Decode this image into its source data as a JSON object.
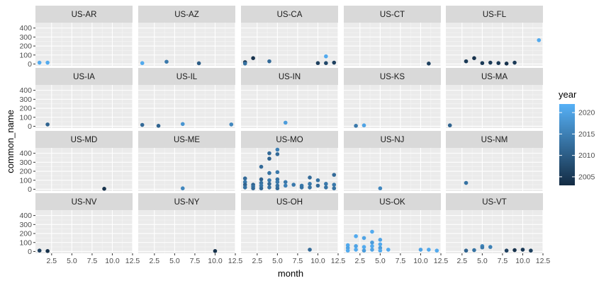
{
  "chart_data": {
    "type": "scatter",
    "xlabel": "month",
    "ylabel": "common_name",
    "xlim": [
      0.5,
      12.5
    ],
    "ylim": [
      -20,
      460
    ],
    "x_ticks": [
      "2.5",
      "5.0",
      "7.5",
      "10.0",
      "12.5"
    ],
    "x_tick_values": [
      2.5,
      5.0,
      7.5,
      10.0,
      12.5
    ],
    "y_ticks": [
      "0",
      "100",
      "200",
      "300",
      "400"
    ],
    "y_tick_values": [
      0,
      100,
      200,
      300,
      400
    ],
    "grid": true,
    "legend": {
      "title": "year",
      "position": "right",
      "ticks": [
        "2020",
        "2015",
        "2010",
        "2005"
      ],
      "tick_values": [
        2020,
        2015,
        2010,
        2005
      ],
      "range": [
        2003,
        2022
      ],
      "color_low": "#132b43",
      "color_high": "#56b1f7"
    },
    "colors": {
      "panel_bg": "#ebebeb",
      "strip_bg": "#d9d9d9",
      "grid_major": "#ffffff"
    },
    "panels": [
      {
        "label": "US-AR",
        "points": [
          {
            "x": 1,
            "y": 15,
            "year": 2021
          },
          {
            "x": 2,
            "y": 15,
            "year": 2021
          }
        ]
      },
      {
        "label": "US-AZ",
        "points": [
          {
            "x": 1,
            "y": 10,
            "year": 2021
          },
          {
            "x": 4,
            "y": 25,
            "year": 2014
          },
          {
            "x": 8,
            "y": 8,
            "year": 2010
          }
        ]
      },
      {
        "label": "US-CA",
        "points": [
          {
            "x": 1,
            "y": 20,
            "year": 2005
          },
          {
            "x": 1,
            "y": 5,
            "year": 2013
          },
          {
            "x": 2,
            "y": 65,
            "year": 2004
          },
          {
            "x": 4,
            "y": 30,
            "year": 2012
          },
          {
            "x": 10,
            "y": 10,
            "year": 2006
          },
          {
            "x": 11,
            "y": 85,
            "year": 2021
          },
          {
            "x": 11,
            "y": 10,
            "year": 2007
          },
          {
            "x": 12,
            "y": 15,
            "year": 2006
          }
        ]
      },
      {
        "label": "US-CT",
        "points": [
          {
            "x": 11,
            "y": 5,
            "year": 2006
          }
        ]
      },
      {
        "label": "US-FL",
        "points": [
          {
            "x": 3,
            "y": 30,
            "year": 2005
          },
          {
            "x": 4,
            "y": 65,
            "year": 2004
          },
          {
            "x": 5,
            "y": 10,
            "year": 2005
          },
          {
            "x": 6,
            "y": 15,
            "year": 2005
          },
          {
            "x": 7,
            "y": 10,
            "year": 2005
          },
          {
            "x": 8,
            "y": 5,
            "year": 2004
          },
          {
            "x": 9,
            "y": 15,
            "year": 2005
          },
          {
            "x": 12,
            "y": 265,
            "year": 2021
          }
        ]
      },
      {
        "label": "US-IA",
        "points": [
          {
            "x": 2,
            "y": 20,
            "year": 2011
          }
        ]
      },
      {
        "label": "US-IL",
        "points": [
          {
            "x": 1,
            "y": 15,
            "year": 2012
          },
          {
            "x": 3,
            "y": 5,
            "year": 2011
          },
          {
            "x": 6,
            "y": 25,
            "year": 2018
          },
          {
            "x": 12,
            "y": 20,
            "year": 2016
          }
        ]
      },
      {
        "label": "US-IN",
        "points": [
          {
            "x": 6,
            "y": 40,
            "year": 2019
          }
        ]
      },
      {
        "label": "US-KS",
        "points": [
          {
            "x": 2,
            "y": 5,
            "year": 2014
          },
          {
            "x": 3,
            "y": 10,
            "year": 2020
          }
        ]
      },
      {
        "label": "US-MA",
        "points": [
          {
            "x": 1,
            "y": 10,
            "year": 2011
          }
        ]
      },
      {
        "label": "US-MD",
        "points": [
          {
            "x": 9,
            "y": 5,
            "year": 2004
          }
        ]
      },
      {
        "label": "US-ME",
        "points": [
          {
            "x": 6,
            "y": 10,
            "year": 2016
          }
        ]
      },
      {
        "label": "US-MO",
        "points": [
          {
            "x": 1,
            "y": 120,
            "year": 2012
          },
          {
            "x": 1,
            "y": 80,
            "year": 2014
          },
          {
            "x": 1,
            "y": 50,
            "year": 2011
          },
          {
            "x": 1,
            "y": 20,
            "year": 2013
          },
          {
            "x": 2,
            "y": 50,
            "year": 2011
          },
          {
            "x": 2,
            "y": 30,
            "year": 2013
          },
          {
            "x": 2,
            "y": 10,
            "year": 2012
          },
          {
            "x": 3,
            "y": 250,
            "year": 2012
          },
          {
            "x": 3,
            "y": 110,
            "year": 2011
          },
          {
            "x": 3,
            "y": 70,
            "year": 2013
          },
          {
            "x": 3,
            "y": 40,
            "year": 2014
          },
          {
            "x": 3,
            "y": 10,
            "year": 2012
          },
          {
            "x": 4,
            "y": 400,
            "year": 2012
          },
          {
            "x": 4,
            "y": 340,
            "year": 2011
          },
          {
            "x": 4,
            "y": 180,
            "year": 2013
          },
          {
            "x": 4,
            "y": 100,
            "year": 2014
          },
          {
            "x": 4,
            "y": 60,
            "year": 2012
          },
          {
            "x": 4,
            "y": 20,
            "year": 2013
          },
          {
            "x": 5,
            "y": 440,
            "year": 2015
          },
          {
            "x": 5,
            "y": 390,
            "year": 2012
          },
          {
            "x": 5,
            "y": 190,
            "year": 2014
          },
          {
            "x": 5,
            "y": 110,
            "year": 2013
          },
          {
            "x": 5,
            "y": 80,
            "year": 2014
          },
          {
            "x": 5,
            "y": 40,
            "year": 2013
          },
          {
            "x": 5,
            "y": 10,
            "year": 2012
          },
          {
            "x": 6,
            "y": 80,
            "year": 2014
          },
          {
            "x": 6,
            "y": 40,
            "year": 2015
          },
          {
            "x": 7,
            "y": 50,
            "year": 2014
          },
          {
            "x": 8,
            "y": 40,
            "year": 2014
          },
          {
            "x": 8,
            "y": 20,
            "year": 2013
          },
          {
            "x": 9,
            "y": 130,
            "year": 2012
          },
          {
            "x": 9,
            "y": 60,
            "year": 2014
          },
          {
            "x": 9,
            "y": 20,
            "year": 2013
          },
          {
            "x": 10,
            "y": 100,
            "year": 2013
          },
          {
            "x": 10,
            "y": 40,
            "year": 2012
          },
          {
            "x": 11,
            "y": 60,
            "year": 2014
          },
          {
            "x": 11,
            "y": 20,
            "year": 2013
          },
          {
            "x": 12,
            "y": 160,
            "year": 2012
          },
          {
            "x": 12,
            "y": 50,
            "year": 2014
          },
          {
            "x": 12,
            "y": 10,
            "year": 2013
          }
        ]
      },
      {
        "label": "US-NJ",
        "points": [
          {
            "x": 5,
            "y": 10,
            "year": 2016
          }
        ]
      },
      {
        "label": "US-NM",
        "points": [
          {
            "x": 3,
            "y": 70,
            "year": 2013
          }
        ]
      },
      {
        "label": "US-NV",
        "points": [
          {
            "x": 1,
            "y": 10,
            "year": 2006
          },
          {
            "x": 2,
            "y": 5,
            "year": 2004
          }
        ]
      },
      {
        "label": "US-NY",
        "points": [
          {
            "x": 10,
            "y": 5,
            "year": 2004
          }
        ]
      },
      {
        "label": "US-OH",
        "points": [
          {
            "x": 9,
            "y": 20,
            "year": 2012
          }
        ]
      },
      {
        "label": "US-OK",
        "points": [
          {
            "x": 1,
            "y": 70,
            "year": 2021
          },
          {
            "x": 1,
            "y": 40,
            "year": 2020
          },
          {
            "x": 1,
            "y": 10,
            "year": 2021
          },
          {
            "x": 2,
            "y": 170,
            "year": 2021
          },
          {
            "x": 2,
            "y": 60,
            "year": 2020
          },
          {
            "x": 2,
            "y": 20,
            "year": 2021
          },
          {
            "x": 3,
            "y": 150,
            "year": 2020
          },
          {
            "x": 3,
            "y": 50,
            "year": 2021
          },
          {
            "x": 3,
            "y": 10,
            "year": 2019
          },
          {
            "x": 4,
            "y": 220,
            "year": 2021
          },
          {
            "x": 4,
            "y": 100,
            "year": 2019
          },
          {
            "x": 4,
            "y": 60,
            "year": 2021
          },
          {
            "x": 4,
            "y": 20,
            "year": 2020
          },
          {
            "x": 5,
            "y": 130,
            "year": 2020
          },
          {
            "x": 5,
            "y": 80,
            "year": 2021
          },
          {
            "x": 5,
            "y": 40,
            "year": 2019
          },
          {
            "x": 5,
            "y": 10,
            "year": 2021
          },
          {
            "x": 6,
            "y": 20,
            "year": 2021
          },
          {
            "x": 10,
            "y": 20,
            "year": 2020
          },
          {
            "x": 11,
            "y": 20,
            "year": 2021
          },
          {
            "x": 12,
            "y": 10,
            "year": 2021
          }
        ]
      },
      {
        "label": "US-VT",
        "points": [
          {
            "x": 3,
            "y": 10,
            "year": 2011
          },
          {
            "x": 4,
            "y": 15,
            "year": 2013
          },
          {
            "x": 5,
            "y": 60,
            "year": 2016
          },
          {
            "x": 5,
            "y": 45,
            "year": 2014
          },
          {
            "x": 6,
            "y": 50,
            "year": 2015
          },
          {
            "x": 8,
            "y": 10,
            "year": 2006
          },
          {
            "x": 9,
            "y": 15,
            "year": 2004
          },
          {
            "x": 10,
            "y": 20,
            "year": 2005
          },
          {
            "x": 11,
            "y": 10,
            "year": 2006
          }
        ]
      }
    ]
  }
}
